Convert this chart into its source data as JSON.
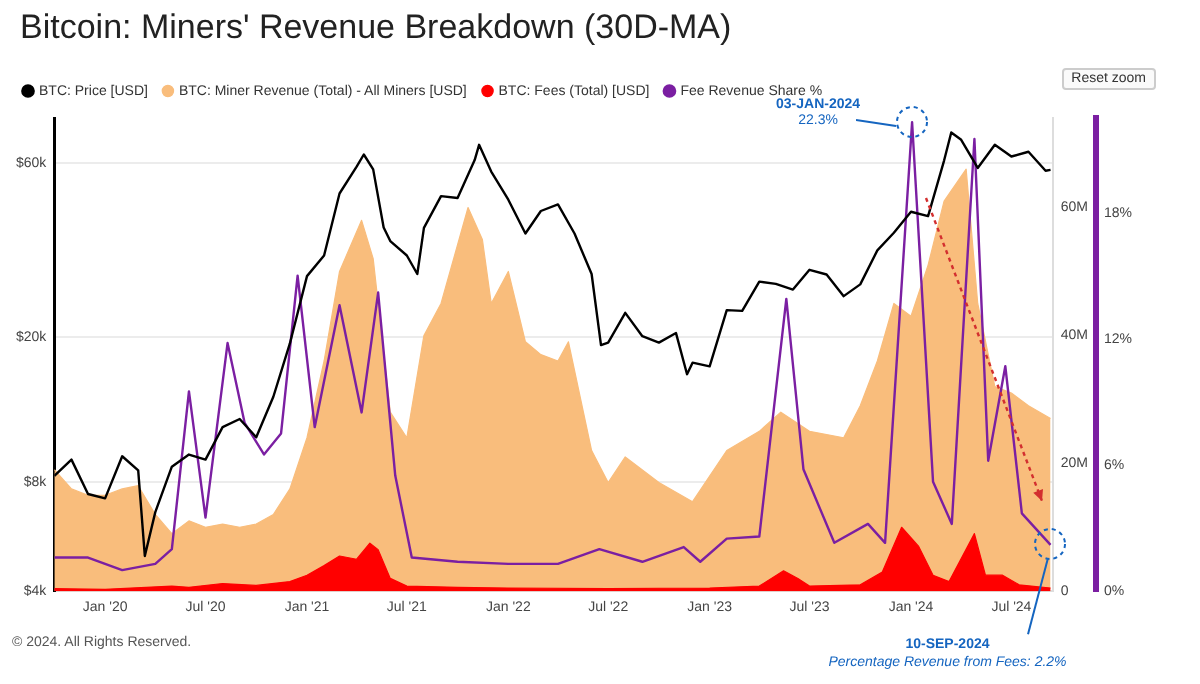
{
  "chart_data": {
    "type": "line",
    "title": "Bitcoin: Miners' Revenue Breakdown (30D-MA)",
    "legend": "top left",
    "marker": "none",
    "grid": "y",
    "log": "y",
    "xlim": [
      "2019-10-01",
      "2024-09-14"
    ],
    "xticks": [
      {
        "value": "2020-01-01",
        "label": "Jan '20"
      },
      {
        "value": "2020-07-01",
        "label": "Jul '20"
      },
      {
        "value": "2021-01-01",
        "label": "Jan '21"
      },
      {
        "value": "2021-07-01",
        "label": "Jul '21"
      },
      {
        "value": "2022-01-01",
        "label": "Jan '22"
      },
      {
        "value": "2022-07-01",
        "label": "Jul '22"
      },
      {
        "value": "2023-01-01",
        "label": "Jan '23"
      },
      {
        "value": "2023-07-01",
        "label": "Jul '23"
      },
      {
        "value": "2024-01-01",
        "label": "Jan '24"
      },
      {
        "value": "2024-07-01",
        "label": "Jul '24"
      }
    ],
    "ylim": [
      4000,
      80000
    ],
    "yticks": [
      {
        "value": 4000,
        "label": "$4k"
      },
      {
        "value": 8000,
        "label": "$8k"
      },
      {
        "value": 20000,
        "label": "$20k"
      },
      {
        "value": 60000,
        "label": "$60k"
      }
    ],
    "y2lim": [
      0,
      74000000
    ],
    "y2ticks": [
      0,
      {
        "value": 20000000,
        "label": "20M"
      },
      {
        "value": 40000000,
        "label": "40M"
      },
      {
        "value": 60000000,
        "label": "60M"
      }
    ],
    "y3lim": [
      0,
      22.5
    ],
    "y3ticks": [
      {
        "value": 0,
        "label": "0%"
      },
      {
        "value": 6,
        "label": "6%"
      },
      {
        "value": 12,
        "label": "12%"
      },
      {
        "value": 18,
        "label": "18%"
      }
    ],
    "series": [
      {
        "name": "BTC: Price [USD]",
        "color": "#000000",
        "x": [
          "2019-10-01",
          "2019-11-01",
          "2019-12-01",
          "2020-01-01",
          "2020-02-01",
          "2020-03-01",
          "2020-03-13",
          "2020-04-01",
          "2020-05-01",
          "2020-06-01",
          "2020-07-01",
          "2020-08-01",
          "2020-09-01",
          "2020-10-01",
          "2020-11-01",
          "2020-12-01",
          "2021-01-01",
          "2021-02-01",
          "2021-03-01",
          "2021-04-01",
          "2021-04-14",
          "2021-05-01",
          "2021-05-20",
          "2021-06-01",
          "2021-07-01",
          "2021-07-20",
          "2021-08-01",
          "2021-09-01",
          "2021-10-01",
          "2021-11-01",
          "2021-11-09",
          "2021-12-01",
          "2022-01-01",
          "2022-02-01",
          "2022-03-01",
          "2022-04-01",
          "2022-05-01",
          "2022-06-01",
          "2022-06-18",
          "2022-07-01",
          "2022-08-01",
          "2022-09-01",
          "2022-10-01",
          "2022-11-01",
          "2022-11-21",
          "2022-12-01",
          "2023-01-01",
          "2023-02-01",
          "2023-03-01",
          "2023-04-01",
          "2023-05-01",
          "2023-06-01",
          "2023-07-01",
          "2023-08-01",
          "2023-09-01",
          "2023-10-01",
          "2023-11-01",
          "2023-12-01",
          "2024-01-01",
          "2024-02-01",
          "2024-03-01",
          "2024-03-14",
          "2024-04-01",
          "2024-05-01",
          "2024-06-01",
          "2024-07-01",
          "2024-08-01",
          "2024-09-01",
          "2024-09-10"
        ],
        "values": [
          8300,
          9200,
          7400,
          7200,
          9400,
          8600,
          5000,
          6600,
          8800,
          9500,
          9200,
          11300,
          11900,
          10600,
          13700,
          19200,
          29400,
          33500,
          49600,
          58800,
          63500,
          57800,
          40000,
          36700,
          33500,
          29800,
          39900,
          48800,
          48200,
          61300,
          67500,
          57000,
          47700,
          38500,
          44400,
          46300,
          38500,
          29800,
          19000,
          19300,
          23300,
          20100,
          19300,
          20500,
          15800,
          17000,
          16600,
          23700,
          23600,
          28400,
          28000,
          27000,
          30600,
          29700,
          25900,
          27900,
          34600,
          38700,
          44200,
          43000,
          61100,
          73000,
          69700,
          58300,
          67500,
          62700,
          64600,
          57300,
          57600
        ]
      },
      {
        "name": "BTC: Miner Revenue (Total) - All Miners [USD]",
        "type": "area",
        "axis": "y2",
        "color": "#f9bd7c",
        "x": [
          "2019-10-01",
          "2019-11-01",
          "2019-12-01",
          "2020-01-01",
          "2020-02-01",
          "2020-03-01",
          "2020-04-01",
          "2020-05-01",
          "2020-06-01",
          "2020-07-01",
          "2020-08-01",
          "2020-09-01",
          "2020-10-01",
          "2020-11-01",
          "2020-12-01",
          "2021-01-01",
          "2021-02-01",
          "2021-03-01",
          "2021-04-10",
          "2021-05-01",
          "2021-06-01",
          "2021-07-01",
          "2021-08-01",
          "2021-09-01",
          "2021-10-20",
          "2021-11-15",
          "2021-12-01",
          "2022-01-01",
          "2022-02-01",
          "2022-03-01",
          "2022-04-01",
          "2022-04-20",
          "2022-06-01",
          "2022-07-01",
          "2022-08-01",
          "2022-10-01",
          "2022-12-01",
          "2023-02-01",
          "2023-04-01",
          "2023-05-10",
          "2023-07-01",
          "2023-09-01",
          "2023-10-01",
          "2023-11-01",
          "2023-12-01",
          "2024-01-01",
          "2024-02-01",
          "2024-03-01",
          "2024-04-10",
          "2024-05-01",
          "2024-06-01",
          "2024-07-01",
          "2024-08-01",
          "2024-09-10"
        ],
        "values": [
          19000000,
          16000000,
          15000000,
          15000000,
          16000000,
          16500000,
          12000000,
          9000000,
          11000000,
          10000000,
          10500000,
          10000000,
          10500000,
          12000000,
          16000000,
          24000000,
          36000000,
          50000000,
          58000000,
          52000000,
          28000000,
          24000000,
          40000000,
          45000000,
          60000000,
          55000000,
          45000000,
          50000000,
          39000000,
          37000000,
          36000000,
          39000000,
          22000000,
          17000000,
          21000000,
          17000000,
          14000000,
          22000000,
          25000000,
          28000000,
          25000000,
          24000000,
          29000000,
          36000000,
          45000000,
          43000000,
          51000000,
          61000000,
          66000000,
          45000000,
          32000000,
          31000000,
          29000000,
          27000000
        ]
      },
      {
        "name": "BTC: Fees (Total) [USD]",
        "type": "area",
        "axis": "y2",
        "color": "#ff0000",
        "x": [
          "2019-10-01",
          "2020-01-01",
          "2020-05-01",
          "2020-06-01",
          "2020-08-01",
          "2020-10-01",
          "2020-12-01",
          "2021-01-01",
          "2021-02-01",
          "2021-03-01",
          "2021-04-01",
          "2021-04-25",
          "2021-05-10",
          "2021-06-01",
          "2021-07-01",
          "2021-10-01",
          "2022-01-01",
          "2022-07-01",
          "2023-01-01",
          "2023-04-01",
          "2023-05-15",
          "2023-06-10",
          "2023-07-01",
          "2023-10-01",
          "2023-11-10",
          "2023-12-15",
          "2024-01-15",
          "2024-02-10",
          "2024-03-10",
          "2024-04-25",
          "2024-05-15",
          "2024-06-15",
          "2024-07-15",
          "2024-09-10"
        ],
        "values": [
          400000,
          300000,
          800000,
          600000,
          1200000,
          900000,
          1500000,
          2500000,
          4000000,
          5500000,
          5000000,
          7500000,
          6500000,
          2000000,
          800000,
          600000,
          500000,
          400000,
          500000,
          800000,
          3200000,
          2000000,
          800000,
          1000000,
          3000000,
          10000000,
          7000000,
          2500000,
          1500000,
          9000000,
          2500000,
          2500000,
          1000000,
          500000
        ]
      },
      {
        "name": "Fee Revenue Share %",
        "axis": "y3",
        "color": "#7b1fa2",
        "x": [
          "2019-10-01",
          "2019-12-01",
          "2020-02-01",
          "2020-04-01",
          "2020-05-01",
          "2020-06-01",
          "2020-07-01",
          "2020-08-10",
          "2020-09-10",
          "2020-10-15",
          "2020-11-15",
          "2020-12-15",
          "2021-01-15",
          "2021-03-01",
          "2021-04-10",
          "2021-05-10",
          "2021-06-10",
          "2021-07-10",
          "2021-10-01",
          "2022-01-01",
          "2022-04-01",
          "2022-06-15",
          "2022-09-01",
          "2022-11-15",
          "2022-12-15",
          "2023-02-01",
          "2023-04-01",
          "2023-05-20",
          "2023-06-20",
          "2023-08-15",
          "2023-10-15",
          "2023-11-15",
          "2024-01-03",
          "2024-02-10",
          "2024-03-15",
          "2024-04-25",
          "2024-05-20",
          "2024-06-20",
          "2024-07-20",
          "2024-09-10"
        ],
        "values": [
          1.6,
          1.6,
          1.0,
          1.3,
          2.0,
          9.5,
          3.5,
          11.8,
          8,
          6.5,
          7.5,
          15,
          7.8,
          13.6,
          8.5,
          14.2,
          5.5,
          1.6,
          1.4,
          1.3,
          1.3,
          2,
          1.4,
          2.1,
          1.4,
          2.5,
          2.6,
          13.9,
          5.8,
          2.3,
          3.2,
          2.3,
          22.3,
          5.2,
          3.2,
          21.5,
          6.2,
          10.7,
          3.7,
          2.2
        ]
      }
    ],
    "annotations": [
      "Reset zoom",
      "© 2024. All Rights Reserved.",
      "03-JAN-2024",
      "22.3%",
      "10-SEP-2024",
      "Percentage Revenue from Fees: 2.2%"
    ]
  }
}
